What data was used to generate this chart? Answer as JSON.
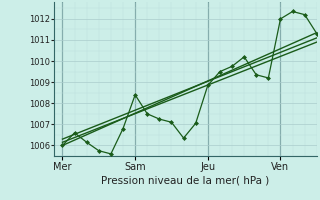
{
  "background_color": "#cceee8",
  "grid_color_major": "#aacccc",
  "grid_color_minor": "#bbdddd",
  "line_color": "#1a5c1a",
  "marker_color": "#1a5c1a",
  "xlabel": "Pression niveau de la mer( hPa )",
  "ylim": [
    1005.5,
    1012.8
  ],
  "yticks": [
    1006,
    1007,
    1008,
    1009,
    1010,
    1011,
    1012
  ],
  "day_labels": [
    "Mer",
    "Sam",
    "Jeu",
    "Ven"
  ],
  "day_positions": [
    0,
    36,
    72,
    108
  ],
  "xlim": [
    -4,
    126
  ],
  "vline_positions": [
    0,
    36,
    72,
    108
  ],
  "series1_x": [
    0,
    6,
    12,
    18,
    24,
    30,
    36,
    42,
    48,
    54,
    60,
    66,
    72,
    78,
    84,
    90,
    96,
    102,
    108,
    114,
    120,
    126
  ],
  "series1_y": [
    1006.0,
    1006.6,
    1006.15,
    1005.75,
    1005.6,
    1006.8,
    1008.4,
    1007.5,
    1007.25,
    1007.1,
    1006.35,
    1007.05,
    1008.85,
    1009.5,
    1009.75,
    1010.2,
    1009.35,
    1009.2,
    1012.0,
    1012.35,
    1012.2,
    1011.3
  ],
  "series2_x": [
    0,
    126
  ],
  "series2_y": [
    1006.3,
    1011.1
  ],
  "series3_x": [
    0,
    126
  ],
  "series3_y": [
    1006.15,
    1010.9
  ],
  "series4_x": [
    0,
    126
  ],
  "series4_y": [
    1006.0,
    1011.35
  ]
}
